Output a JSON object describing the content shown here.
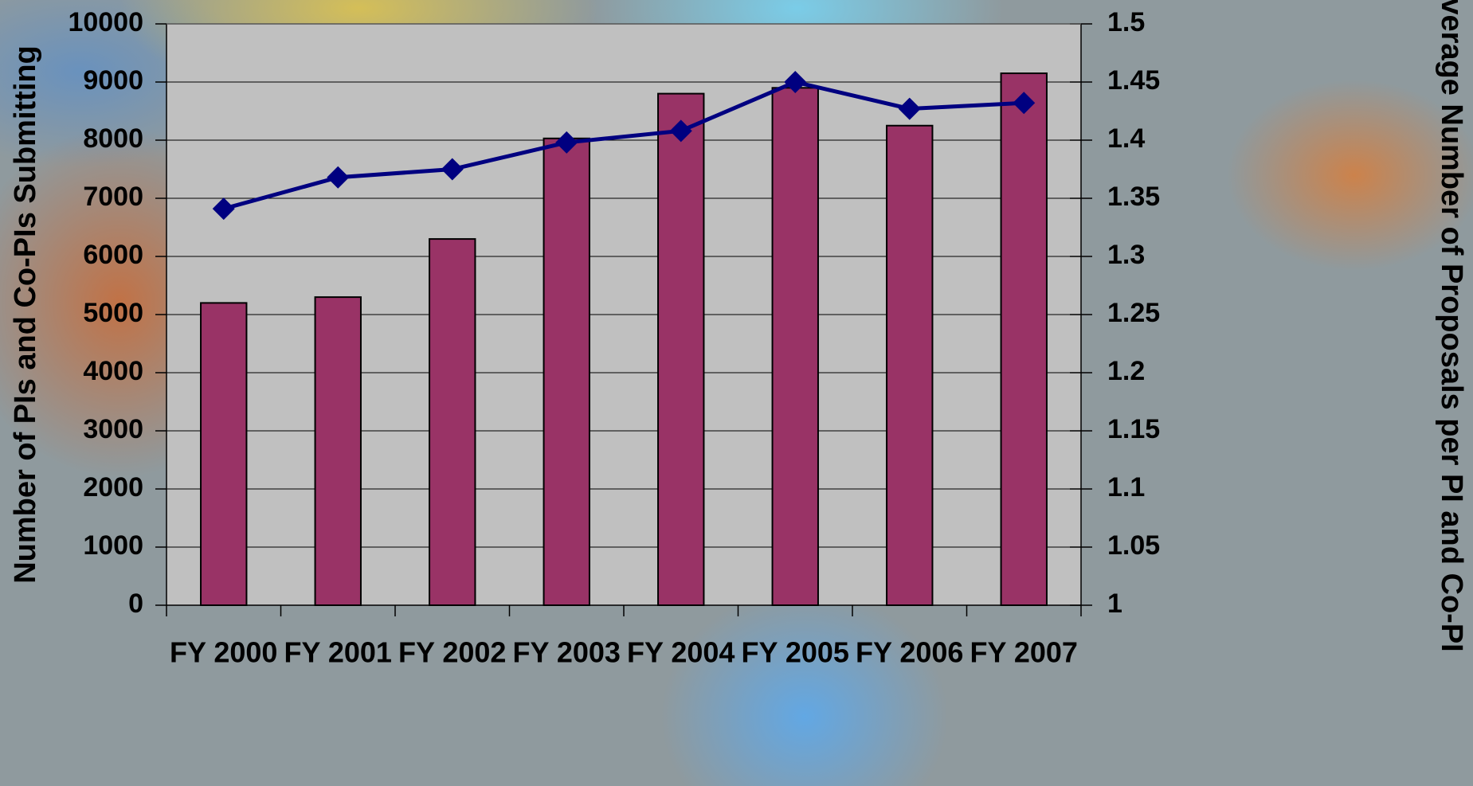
{
  "chart_data": {
    "type": "bar",
    "ylabel": "Number of PIs and Co-PIs Submitting",
    "y2label": "Average Number of Proposals per PI and Co-PI",
    "categories": [
      "FY 2000",
      "FY 2001",
      "FY 2002",
      "FY 2003",
      "FY 2004",
      "FY 2005",
      "FY 2006",
      "FY 2007"
    ],
    "series": [
      {
        "type": "bar",
        "color": "#993366",
        "values": [
          5200,
          5300,
          6300,
          8030,
          8800,
          8900,
          8250,
          9150
        ]
      },
      {
        "type": "line",
        "axis": "y2",
        "color": "#000080",
        "values": [
          1.341,
          1.368,
          1.375,
          1.398,
          1.408,
          1.45,
          1.427,
          1.432
        ]
      }
    ],
    "ylim": [
      0,
      10000
    ],
    "yticks": [
      0,
      1000,
      2000,
      3000,
      4000,
      5000,
      6000,
      7000,
      8000,
      9000,
      10000
    ],
    "y2lim": [
      1,
      1.5
    ],
    "y2ticks": [
      1,
      1.05,
      1.1,
      1.15,
      1.2,
      1.25,
      1.3,
      1.35,
      1.4,
      1.45,
      1.5
    ],
    "grid": true
  }
}
